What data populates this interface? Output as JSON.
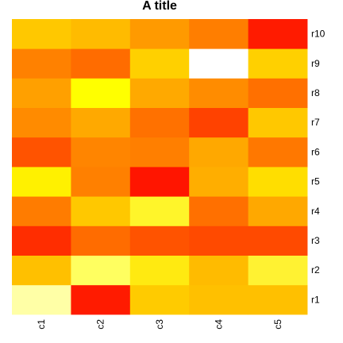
{
  "chart_data": {
    "type": "heatmap",
    "title": "A title",
    "xlabel": "",
    "ylabel": "",
    "columns": [
      "c1",
      "c2",
      "c3",
      "c4",
      "c5"
    ],
    "rows": [
      "r1",
      "r2",
      "r3",
      "r4",
      "r5",
      "r6",
      "r7",
      "r8",
      "r9",
      "r10"
    ],
    "colors": [
      [
        "#FFFFA6",
        "#FF1B00",
        "#FFCB00",
        "#FFC000",
        "#FFC000"
      ],
      [
        "#FFC000",
        "#FFFF60",
        "#FFEA11",
        "#FFBB00",
        "#FFF232"
      ],
      [
        "#FF2D00",
        "#FF6C00",
        "#FF5300",
        "#FF4A00",
        "#FF4A00"
      ],
      [
        "#FF7C00",
        "#FFC800",
        "#FFF52A",
        "#FF7000",
        "#FFA800"
      ],
      [
        "#FFF100",
        "#FF8000",
        "#FF1500",
        "#FFAE00",
        "#FFDE00"
      ],
      [
        "#FF5300",
        "#FF8500",
        "#FF7F00",
        "#FFA800",
        "#FF7800"
      ],
      [
        "#FF8B00",
        "#FFA900",
        "#FF7100",
        "#FF4200",
        "#FFC800"
      ],
      [
        "#FFA000",
        "#FFFF00",
        "#FFA900",
        "#FF8C00",
        "#FF7000"
      ],
      [
        "#FF8100",
        "#FF6C00",
        "#FFD000",
        "#FFFFFF",
        "#FFD000"
      ],
      [
        "#FFC800",
        "#FFBB00",
        "#FF9A00",
        "#FF7E00",
        "#FF1B00"
      ]
    ],
    "grid": false,
    "legend": "none"
  }
}
